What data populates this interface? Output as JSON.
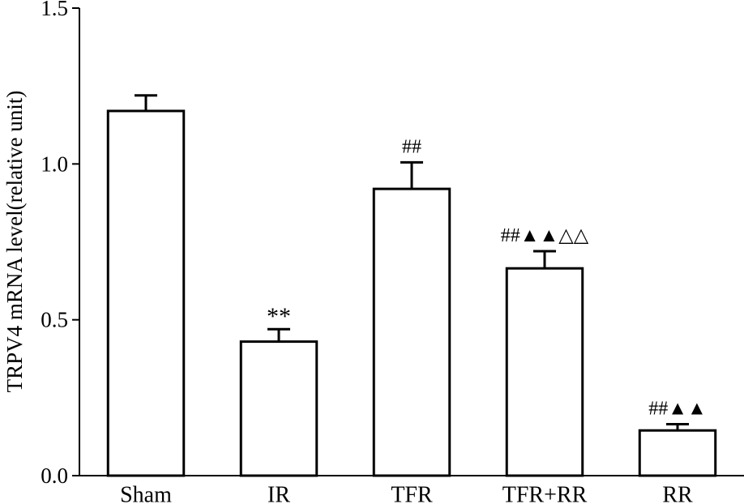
{
  "chart_data": {
    "type": "bar",
    "title": "",
    "xlabel": "",
    "ylabel": "TRPV4 mRNA level(relative unit)",
    "ylim": [
      0,
      1.5
    ],
    "yticks": [
      "0.0",
      "0.5",
      "1.0",
      "1.5"
    ],
    "categories": [
      "Sham",
      "IR",
      "TFR",
      "TFR+RR",
      "RR"
    ],
    "values": [
      1.17,
      0.43,
      0.92,
      0.665,
      0.145
    ],
    "errors": [
      0.05,
      0.04,
      0.085,
      0.055,
      0.02
    ],
    "annotations": [
      "",
      "**",
      "##",
      "##▲▲△△",
      "##▲▲"
    ],
    "grid": false,
    "legend": "none"
  }
}
